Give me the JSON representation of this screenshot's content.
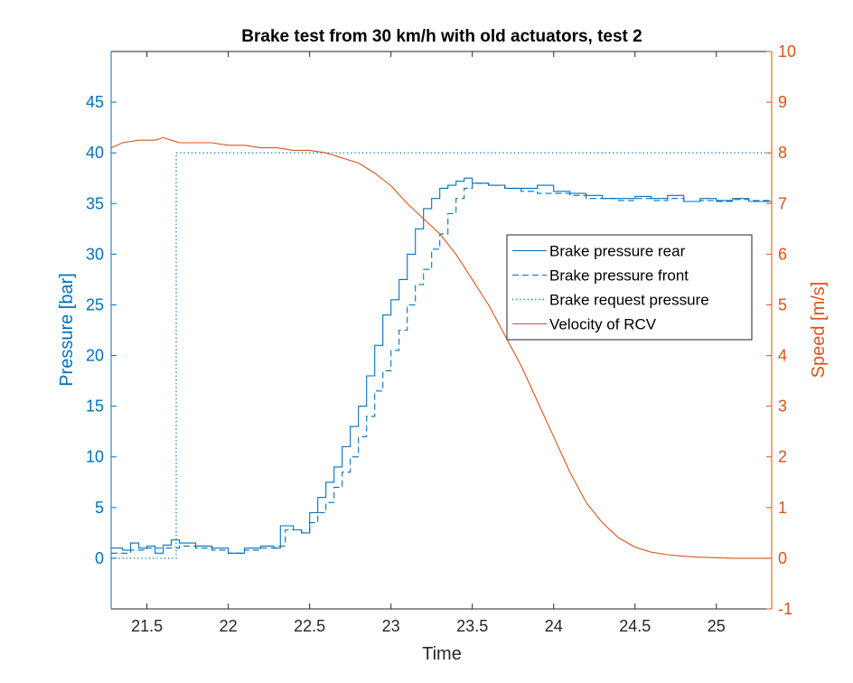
{
  "chart_data": {
    "type": "line",
    "title": "Brake test from 30 km/h with old actuators, test 2",
    "xlabel": "Time",
    "ylabel_left": "Pressure [bar]",
    "ylabel_right": "Speed [m/s]",
    "xlim": [
      21.28,
      25.34
    ],
    "ylim_left": [
      -5,
      50
    ],
    "ylim_right": [
      -1,
      10
    ],
    "x_ticks": [
      "21.5",
      "22",
      "22.5",
      "23",
      "23.5",
      "24",
      "24.5",
      "25"
    ],
    "y_left_ticks": [
      "0",
      "5",
      "10",
      "15",
      "20",
      "25",
      "30",
      "35",
      "40",
      "45"
    ],
    "y_right_ticks": [
      "-1",
      "0",
      "1",
      "2",
      "3",
      "4",
      "5",
      "6",
      "7",
      "8",
      "9",
      "10"
    ],
    "colors": {
      "pressure": "#0072BD",
      "speed": "#D95319"
    },
    "legend_position": "center-right",
    "grid": false,
    "series": [
      {
        "name": "Brake pressure rear",
        "axis": "left",
        "style": "solid",
        "x": [
          21.28,
          21.35,
          21.4,
          21.45,
          21.5,
          21.55,
          21.6,
          21.65,
          21.7,
          21.8,
          21.9,
          22.0,
          22.1,
          22.2,
          22.28,
          22.32,
          22.4,
          22.45,
          22.5,
          22.55,
          22.6,
          22.65,
          22.7,
          22.75,
          22.8,
          22.85,
          22.9,
          22.95,
          23.0,
          23.05,
          23.1,
          23.15,
          23.2,
          23.25,
          23.3,
          23.35,
          23.4,
          23.45,
          23.5,
          23.6,
          23.7,
          23.8,
          23.9,
          24.0,
          24.1,
          24.2,
          24.3,
          24.4,
          24.5,
          24.6,
          24.7,
          24.8,
          24.9,
          25.0,
          25.1,
          25.2,
          25.34
        ],
        "values": [
          1.0,
          0.8,
          1.5,
          1.0,
          1.2,
          0.5,
          1.3,
          1.8,
          1.5,
          1.2,
          1.0,
          0.5,
          1.0,
          1.2,
          1.0,
          3.2,
          2.8,
          2.5,
          4.5,
          6.0,
          7.5,
          9.0,
          11.0,
          13.0,
          15.0,
          18.0,
          21.0,
          24.0,
          25.5,
          27.5,
          30.0,
          32.5,
          34.5,
          35.5,
          36.5,
          36.8,
          37.2,
          37.5,
          37.0,
          36.8,
          36.5,
          36.5,
          36.8,
          36.2,
          36.0,
          35.8,
          35.5,
          35.5,
          35.7,
          35.5,
          35.8,
          35.2,
          35.5,
          35.3,
          35.5,
          35.2,
          35.0
        ]
      },
      {
        "name": "Brake pressure front",
        "axis": "left",
        "style": "dashed",
        "x": [
          21.28,
          21.4,
          21.5,
          21.6,
          21.7,
          21.8,
          21.9,
          22.0,
          22.1,
          22.2,
          22.3,
          22.35,
          22.45,
          22.5,
          22.55,
          22.6,
          22.65,
          22.7,
          22.75,
          22.8,
          22.85,
          22.9,
          22.95,
          23.0,
          23.05,
          23.1,
          23.15,
          23.2,
          23.25,
          23.3,
          23.35,
          23.4,
          23.45,
          23.5,
          23.6,
          23.7,
          23.8,
          23.9,
          24.0,
          24.1,
          24.2,
          24.3,
          24.4,
          24.5,
          24.6,
          24.7,
          24.8,
          24.9,
          25.0,
          25.1,
          25.2,
          25.34
        ],
        "values": [
          0.5,
          0.8,
          1.0,
          1.0,
          1.2,
          1.0,
          0.8,
          0.5,
          0.8,
          1.0,
          1.2,
          2.8,
          2.5,
          3.5,
          4.5,
          5.5,
          7.0,
          8.5,
          10.0,
          12.0,
          14.0,
          16.5,
          18.5,
          20.5,
          22.5,
          25.0,
          27.0,
          28.5,
          30.5,
          32.0,
          34.0,
          35.5,
          36.5,
          37.0,
          36.8,
          36.5,
          36.2,
          36.0,
          36.0,
          35.8,
          35.5,
          35.5,
          35.3,
          35.5,
          35.3,
          35.5,
          35.2,
          35.3,
          35.2,
          35.4,
          35.3,
          35.2
        ]
      },
      {
        "name": "Brake request pressure",
        "axis": "left",
        "style": "dotted",
        "x": [
          21.28,
          21.68,
          21.68,
          25.34
        ],
        "values": [
          0,
          0,
          40,
          40
        ]
      },
      {
        "name": "Velocity of RCV",
        "axis": "right",
        "style": "solid",
        "x": [
          21.28,
          21.35,
          21.45,
          21.55,
          21.6,
          21.65,
          21.7,
          21.8,
          21.9,
          22.0,
          22.1,
          22.2,
          22.3,
          22.4,
          22.5,
          22.6,
          22.65,
          22.7,
          22.8,
          22.9,
          23.0,
          23.1,
          23.2,
          23.3,
          23.4,
          23.5,
          23.6,
          23.7,
          23.8,
          23.9,
          24.0,
          24.1,
          24.2,
          24.3,
          24.4,
          24.5,
          24.6,
          24.7,
          24.8,
          24.9,
          25.0,
          25.1,
          25.2,
          25.34
        ],
        "values": [
          8.1,
          8.2,
          8.25,
          8.25,
          8.3,
          8.25,
          8.2,
          8.2,
          8.2,
          8.15,
          8.15,
          8.1,
          8.1,
          8.05,
          8.05,
          8.0,
          7.95,
          7.9,
          7.8,
          7.6,
          7.35,
          7.0,
          6.7,
          6.4,
          6.0,
          5.5,
          5.0,
          4.4,
          3.8,
          3.1,
          2.4,
          1.7,
          1.1,
          0.7,
          0.4,
          0.22,
          0.12,
          0.07,
          0.04,
          0.02,
          0.01,
          0.0,
          0.0,
          0.0
        ]
      }
    ]
  }
}
